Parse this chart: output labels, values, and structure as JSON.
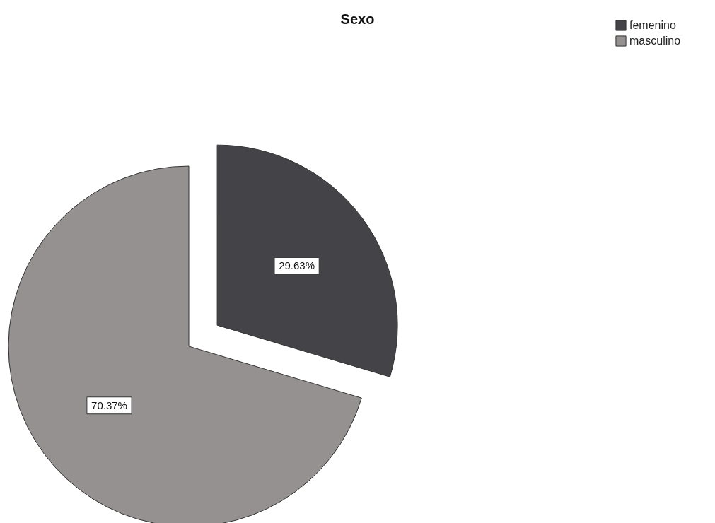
{
  "chart_data": {
    "type": "pie",
    "title": "Sexo",
    "categories": [
      "femenino",
      "masculino"
    ],
    "values": [
      29.63,
      70.37
    ],
    "colors": [
      "#444448",
      "#959191"
    ],
    "value_labels": [
      "29.63%",
      "70.37%"
    ],
    "legend": "top right"
  }
}
